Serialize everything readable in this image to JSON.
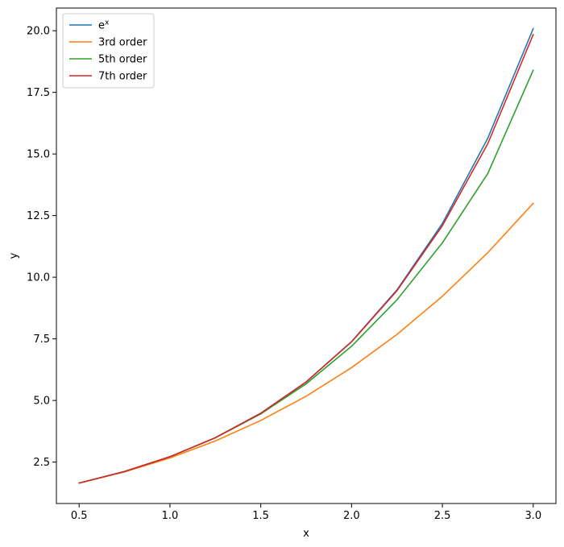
{
  "chart_data": {
    "type": "line",
    "title": "",
    "xlabel": "x",
    "ylabel": "y",
    "xlim": [
      0.375,
      3.125
    ],
    "ylim": [
      0.82,
      20.92
    ],
    "xticks": [
      0.5,
      1.0,
      1.5,
      2.0,
      2.5,
      3.0
    ],
    "xtick_labels": [
      "0.5",
      "1.0",
      "1.5",
      "2.0",
      "2.5",
      "3.0"
    ],
    "yticks": [
      2.5,
      5.0,
      7.5,
      10.0,
      12.5,
      15.0,
      17.5,
      20.0
    ],
    "ytick_labels": [
      "2.5",
      "5.0",
      "7.5",
      "10.0",
      "12.5",
      "15.0",
      "17.5",
      "20.0"
    ],
    "grid": false,
    "legend_position": "top-left",
    "series": [
      {
        "name_base": "e",
        "name_sup": "x",
        "color": "#1f77b4",
        "x": [
          0.5,
          0.75,
          1.0,
          1.25,
          1.5,
          1.75,
          2.0,
          2.25,
          2.5,
          2.75,
          3.0
        ],
        "y": [
          1.649,
          2.117,
          2.718,
          3.49,
          4.482,
          5.755,
          7.389,
          9.488,
          12.182,
          15.643,
          20.086
        ]
      },
      {
        "name": "3rd order",
        "color": "#ff7f0e",
        "x": [
          0.5,
          0.75,
          1.0,
          1.25,
          1.5,
          1.75,
          2.0,
          2.25,
          2.5,
          2.75,
          3.0
        ],
        "y": [
          1.646,
          2.102,
          2.667,
          3.357,
          4.188,
          5.174,
          6.333,
          7.68,
          9.229,
          10.997,
          13.0
        ]
      },
      {
        "name": "5th order",
        "color": "#2ca02c",
        "x": [
          0.5,
          0.75,
          1.0,
          1.25,
          1.5,
          1.75,
          2.0,
          2.25,
          2.5,
          2.75,
          3.0
        ],
        "y": [
          1.649,
          2.117,
          2.717,
          3.483,
          4.455,
          5.676,
          7.2,
          9.084,
          11.396,
          14.211,
          18.4
        ]
      },
      {
        "name": "7th order",
        "color": "#d62728",
        "x": [
          0.5,
          0.75,
          1.0,
          1.25,
          1.5,
          1.75,
          2.0,
          2.25,
          2.5,
          2.75,
          3.0
        ],
        "y": [
          1.649,
          2.117,
          2.718,
          3.49,
          4.481,
          5.752,
          7.379,
          9.455,
          12.091,
          15.421,
          19.846
        ]
      }
    ]
  }
}
